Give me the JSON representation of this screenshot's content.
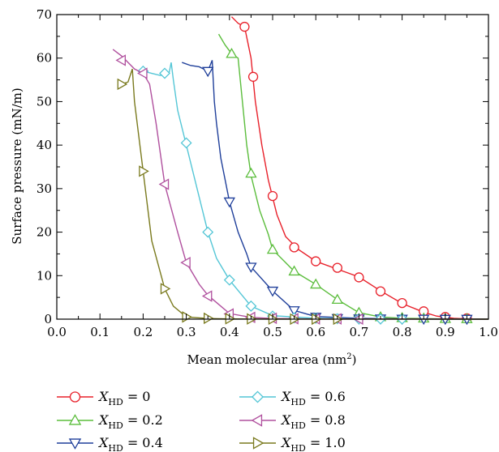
{
  "chart_data": {
    "type": "line",
    "title": "",
    "xlabel": "Mean molecular area (nm",
    "xlabel_sup": "2",
    "xlabel_end": ")",
    "ylabel": "Surface pressure (mN/m)",
    "xlim": [
      0.0,
      1.0
    ],
    "ylim": [
      0,
      70
    ],
    "grid": false,
    "legend_position": "below",
    "x_ticks": [
      "0.0",
      "0.1",
      "0.2",
      "0.3",
      "0.4",
      "0.5",
      "0.6",
      "0.7",
      "0.8",
      "0.9",
      "1.0"
    ],
    "y_ticks": [
      "0",
      "10",
      "20",
      "30",
      "40",
      "50",
      "60",
      "70"
    ],
    "legend_var": "X",
    "legend_sub": "HD",
    "series": [
      {
        "name": "= 0",
        "color": "#e8202a",
        "marker": "circle",
        "curve": [
          [
            0.405,
            69.5
          ],
          [
            0.42,
            68
          ],
          [
            0.435,
            67.2
          ],
          [
            0.45,
            60
          ],
          [
            0.46,
            50
          ],
          [
            0.475,
            40
          ],
          [
            0.49,
            32
          ],
          [
            0.51,
            24
          ],
          [
            0.53,
            19
          ],
          [
            0.56,
            16
          ],
          [
            0.6,
            13.3
          ],
          [
            0.65,
            11.5
          ],
          [
            0.7,
            9.7
          ],
          [
            0.75,
            6.5
          ],
          [
            0.8,
            3.6
          ],
          [
            0.85,
            1.6
          ],
          [
            0.88,
            0.7
          ],
          [
            0.92,
            0.2
          ],
          [
            0.95,
            0.05
          ],
          [
            1.0,
            0
          ]
        ],
        "markers": [
          [
            0.435,
            67.2
          ],
          [
            0.455,
            55.7
          ],
          [
            0.5,
            28.3
          ],
          [
            0.55,
            16.5
          ],
          [
            0.6,
            13.3
          ],
          [
            0.65,
            11.8
          ],
          [
            0.7,
            9.6
          ],
          [
            0.75,
            6.4
          ],
          [
            0.8,
            3.7
          ],
          [
            0.85,
            1.8
          ],
          [
            0.9,
            0.5
          ],
          [
            0.95,
            0.2
          ]
        ]
      },
      {
        "name": "= 0.2",
        "color": "#5bbd3c",
        "marker": "triangle-up",
        "curve": [
          [
            0.375,
            65.5
          ],
          [
            0.39,
            63
          ],
          [
            0.405,
            61
          ],
          [
            0.42,
            60
          ],
          [
            0.43,
            50
          ],
          [
            0.44,
            40
          ],
          [
            0.45,
            33
          ],
          [
            0.47,
            25
          ],
          [
            0.49,
            19.5
          ],
          [
            0.5,
            16
          ],
          [
            0.53,
            13
          ],
          [
            0.55,
            11
          ],
          [
            0.6,
            8
          ],
          [
            0.65,
            4.5
          ],
          [
            0.7,
            1.5
          ],
          [
            0.75,
            0.5
          ],
          [
            0.8,
            0.2
          ],
          [
            0.9,
            0.05
          ],
          [
            1.0,
            0
          ]
        ],
        "markers": [
          [
            0.405,
            61
          ],
          [
            0.45,
            33.5
          ],
          [
            0.5,
            16
          ],
          [
            0.55,
            11
          ],
          [
            0.6,
            8
          ],
          [
            0.65,
            4.5
          ],
          [
            0.7,
            1.5
          ],
          [
            0.75,
            0.5
          ],
          [
            0.8,
            0.3
          ],
          [
            0.85,
            0.2
          ],
          [
            0.9,
            0.1
          ],
          [
            0.95,
            0.05
          ]
        ]
      },
      {
        "name": "= 0.4",
        "color": "#1f3f9a",
        "marker": "triangle-down",
        "curve": [
          [
            0.29,
            59
          ],
          [
            0.31,
            58.3
          ],
          [
            0.33,
            58
          ],
          [
            0.35,
            57
          ],
          [
            0.36,
            59.5
          ],
          [
            0.365,
            50
          ],
          [
            0.37,
            45
          ],
          [
            0.38,
            37
          ],
          [
            0.4,
            27
          ],
          [
            0.42,
            20
          ],
          [
            0.44,
            15
          ],
          [
            0.45,
            12
          ],
          [
            0.5,
            6.5
          ],
          [
            0.55,
            2
          ],
          [
            0.6,
            0.6
          ],
          [
            0.7,
            0.2
          ],
          [
            0.8,
            0.05
          ],
          [
            1.0,
            0
          ]
        ],
        "markers": [
          [
            0.35,
            57
          ],
          [
            0.4,
            27
          ],
          [
            0.45,
            12
          ],
          [
            0.5,
            6.5
          ],
          [
            0.55,
            2
          ],
          [
            0.6,
            0.5
          ],
          [
            0.65,
            0.2
          ],
          [
            0.7,
            0.1
          ],
          [
            0.75,
            0.1
          ],
          [
            0.8,
            0.05
          ],
          [
            0.85,
            0.05
          ],
          [
            0.9,
            0.03
          ],
          [
            0.95,
            0.03
          ]
        ]
      },
      {
        "name": "= 0.6",
        "color": "#54c6d6",
        "marker": "diamond",
        "curve": [
          [
            0.2,
            57
          ],
          [
            0.22,
            56.5
          ],
          [
            0.24,
            56
          ],
          [
            0.26,
            56.5
          ],
          [
            0.265,
            59
          ],
          [
            0.27,
            55
          ],
          [
            0.28,
            48
          ],
          [
            0.3,
            40
          ],
          [
            0.33,
            28
          ],
          [
            0.35,
            20
          ],
          [
            0.37,
            14
          ],
          [
            0.4,
            9
          ],
          [
            0.45,
            3
          ],
          [
            0.5,
            0.8
          ],
          [
            0.6,
            0.2
          ],
          [
            0.7,
            0.05
          ],
          [
            1.0,
            0
          ]
        ],
        "markers": [
          [
            0.2,
            57
          ],
          [
            0.25,
            56.5
          ],
          [
            0.3,
            40.5
          ],
          [
            0.35,
            20
          ],
          [
            0.4,
            9
          ],
          [
            0.45,
            3
          ],
          [
            0.5,
            0.7
          ],
          [
            0.55,
            0.3
          ],
          [
            0.6,
            0.2
          ],
          [
            0.65,
            0.1
          ],
          [
            0.7,
            0.05
          ],
          [
            0.75,
            0.05
          ],
          [
            0.8,
            0.03
          ]
        ]
      },
      {
        "name": "= 0.8",
        "color": "#b0509e",
        "marker": "triangle-left",
        "curve": [
          [
            0.13,
            62
          ],
          [
            0.15,
            60.5
          ],
          [
            0.16,
            59.5
          ],
          [
            0.18,
            57.5
          ],
          [
            0.2,
            56.5
          ],
          [
            0.215,
            54
          ],
          [
            0.23,
            45
          ],
          [
            0.25,
            31
          ],
          [
            0.28,
            20
          ],
          [
            0.3,
            13
          ],
          [
            0.33,
            8
          ],
          [
            0.35,
            5.5
          ],
          [
            0.4,
            1.3
          ],
          [
            0.45,
            0.4
          ],
          [
            0.5,
            0.15
          ],
          [
            0.6,
            0.05
          ],
          [
            1.0,
            0
          ]
        ],
        "markers": [
          [
            0.15,
            59.5
          ],
          [
            0.2,
            56.5
          ],
          [
            0.25,
            31
          ],
          [
            0.3,
            13
          ],
          [
            0.35,
            5.3
          ],
          [
            0.4,
            1.2
          ],
          [
            0.45,
            0.4
          ],
          [
            0.5,
            0.2
          ],
          [
            0.55,
            0.1
          ],
          [
            0.6,
            0.05
          ],
          [
            0.65,
            0.05
          ],
          [
            0.7,
            0.03
          ]
        ]
      },
      {
        "name": "= 1.0",
        "color": "#7a7a1e",
        "marker": "triangle-right",
        "curve": [
          [
            0.15,
            54
          ],
          [
            0.165,
            54.5
          ],
          [
            0.175,
            57.5
          ],
          [
            0.18,
            50
          ],
          [
            0.19,
            42
          ],
          [
            0.2,
            34
          ],
          [
            0.22,
            18
          ],
          [
            0.25,
            7
          ],
          [
            0.27,
            3
          ],
          [
            0.3,
            0.5
          ],
          [
            0.35,
            0.15
          ],
          [
            0.4,
            0.05
          ],
          [
            0.5,
            0.02
          ],
          [
            1.0,
            0
          ]
        ],
        "markers": [
          [
            0.15,
            54
          ],
          [
            0.2,
            34
          ],
          [
            0.25,
            7
          ],
          [
            0.3,
            0.5
          ],
          [
            0.35,
            0.2
          ],
          [
            0.4,
            0.1
          ],
          [
            0.45,
            0.05
          ],
          [
            0.5,
            0.03
          ],
          [
            0.55,
            0.02
          ],
          [
            0.6,
            0.02
          ],
          [
            0.65,
            0.01
          ]
        ]
      }
    ]
  }
}
